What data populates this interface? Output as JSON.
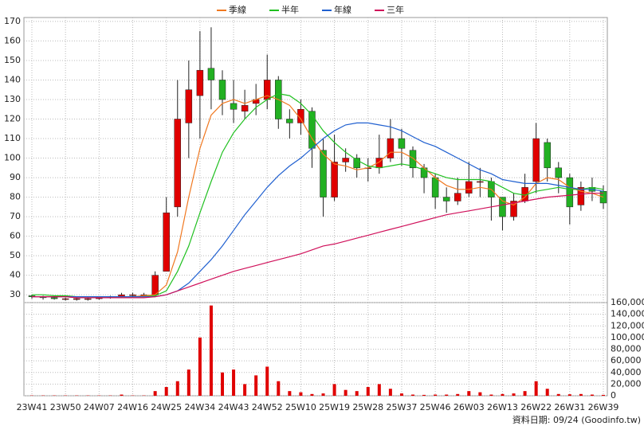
{
  "chart_data": {
    "type": "candlestick",
    "legend": "top",
    "grid": true,
    "up_color": "#e00000",
    "down_color": "#22b022",
    "categories": [
      "23W41",
      null,
      null,
      "23W50",
      null,
      null,
      "24W07",
      null,
      null,
      "24W16",
      null,
      null,
      "24W25",
      null,
      null,
      "24W34",
      null,
      null,
      "24W43",
      null,
      null,
      "24W52",
      null,
      null,
      "25W10",
      null,
      null,
      "25W19",
      null,
      null,
      "25W28",
      null,
      null,
      "25W37",
      null,
      null,
      "25W46",
      null,
      null,
      "26W03",
      null,
      null,
      "26W13",
      null,
      null,
      "26W22",
      null,
      null,
      "26W31",
      null,
      null,
      "26W39"
    ],
    "open": [
      29.5,
      29,
      28.5,
      28,
      28,
      28,
      28,
      28.5,
      29,
      30,
      30,
      30,
      42,
      75,
      118,
      132,
      146,
      140,
      128,
      124,
      128,
      130,
      140,
      120,
      118,
      124,
      104,
      80,
      98,
      100,
      95,
      95,
      100,
      110,
      104,
      95,
      90,
      80,
      78,
      82,
      88,
      88,
      80,
      70,
      78,
      88,
      108,
      95,
      90,
      76,
      85,
      83
    ],
    "high": [
      30,
      29.5,
      29,
      28.5,
      28.5,
      28.5,
      29,
      29.5,
      31,
      31,
      31,
      42,
      80,
      140,
      150,
      165,
      167,
      145,
      140,
      135,
      138,
      153,
      142,
      125,
      130,
      126,
      110,
      112,
      105,
      102,
      100,
      112,
      120,
      115,
      106,
      97,
      92,
      85,
      90,
      98,
      95,
      90,
      80,
      82,
      92,
      118,
      110,
      98,
      92,
      88,
      90,
      86
    ],
    "low": [
      28,
      27.5,
      27.5,
      27,
      27,
      27,
      27.5,
      28,
      28.5,
      29,
      29,
      29,
      42,
      70,
      100,
      110,
      125,
      122,
      118,
      120,
      122,
      125,
      115,
      110,
      112,
      95,
      70,
      78,
      93,
      90,
      88,
      92,
      98,
      96,
      90,
      82,
      74,
      72,
      76,
      80,
      80,
      68,
      63,
      68,
      77,
      82,
      88,
      82,
      66,
      73,
      78,
      74
    ],
    "close": [
      29,
      28.5,
      28,
      28,
      28,
      28,
      28.5,
      29,
      30,
      30,
      30,
      40,
      72,
      120,
      135,
      145,
      140,
      130,
      125,
      127,
      130,
      140,
      120,
      118,
      125,
      105,
      80,
      98,
      100,
      95,
      95,
      100,
      110,
      105,
      95,
      90,
      80,
      78,
      82,
      88,
      88,
      80,
      70,
      78,
      85,
      110,
      95,
      90,
      75,
      85,
      83,
      77
    ],
    "lines": [
      {
        "name": "季線",
        "color": "#f07820",
        "values": [
          29,
          29,
          29,
          29,
          28.5,
          28.5,
          28.5,
          28.5,
          29,
          29,
          29.5,
          30,
          35,
          52,
          80,
          105,
          122,
          128,
          130,
          128,
          130,
          132,
          130,
          127,
          120,
          110,
          102,
          97,
          96,
          94,
          95,
          98,
          103,
          103,
          100,
          95,
          90,
          86,
          84,
          84,
          85,
          84,
          78,
          76,
          80,
          87,
          90,
          89,
          85,
          83,
          82,
          80
        ]
      },
      {
        "name": "半年",
        "color": "#20c020",
        "values": [
          30,
          30,
          29.5,
          29.5,
          29,
          29,
          29,
          29,
          29,
          29,
          29,
          29.5,
          32,
          42,
          55,
          72,
          88,
          103,
          113,
          120,
          126,
          130,
          133,
          132,
          128,
          122,
          114,
          108,
          103,
          99,
          96,
          95,
          96,
          97,
          96,
          94,
          92,
          90,
          89,
          89,
          89,
          88,
          85,
          82,
          81,
          83,
          84,
          85,
          84,
          84,
          85,
          84
        ]
      },
      {
        "name": "年線",
        "color": "#2060d0",
        "values": [
          29,
          29,
          29,
          29,
          29,
          29,
          29,
          29,
          29,
          29,
          29,
          29,
          30,
          32,
          36,
          42,
          48,
          55,
          63,
          71,
          78,
          85,
          91,
          96,
          100,
          105,
          110,
          114,
          117,
          118,
          118,
          117,
          116,
          114,
          111,
          108,
          106,
          103,
          100,
          97,
          94,
          92,
          89,
          88,
          87,
          87,
          87,
          86,
          85,
          84,
          84,
          83
        ]
      },
      {
        "name": "三年",
        "color": "#d0105a",
        "values": [
          29,
          29,
          29,
          29,
          28.5,
          28.5,
          28.5,
          28.5,
          28.5,
          28.5,
          28.5,
          29,
          30,
          32,
          34,
          36,
          38,
          40,
          42,
          43.5,
          45,
          46.5,
          48,
          49.5,
          51,
          53,
          55,
          56,
          57.5,
          59,
          60.5,
          62,
          63.5,
          65,
          66.5,
          68,
          69.5,
          71,
          72,
          73,
          74,
          75,
          76,
          77,
          78,
          79,
          80,
          80.5,
          81,
          81.5,
          82,
          82
        ]
      }
    ],
    "ylim": [
      26,
      172
    ],
    "yticks": [
      30,
      40,
      50,
      60,
      70,
      80,
      90,
      100,
      110,
      120,
      130,
      140,
      150,
      160,
      170
    ],
    "volume": {
      "color": "#e00000",
      "values": [
        500,
        500,
        500,
        500,
        500,
        500,
        500,
        500,
        2000,
        500,
        500,
        8000,
        15000,
        25000,
        45000,
        100000,
        155000,
        40000,
        45000,
        20000,
        35000,
        50000,
        25000,
        8000,
        6000,
        3000,
        4000,
        20000,
        10000,
        8000,
        15000,
        20000,
        12000,
        4000,
        2000,
        1500,
        2000,
        2000,
        3000,
        8000,
        6000,
        2000,
        3000,
        4000,
        8000,
        25000,
        12000,
        3000,
        2500,
        3000,
        2000,
        1500
      ],
      "ylim": [
        0,
        160000
      ],
      "yticks": [
        0,
        {
          "value": 20000,
          "label": "20,000"
        },
        {
          "value": 40000,
          "label": "40,000"
        },
        {
          "value": 60000,
          "label": "60,000"
        },
        {
          "value": 80000,
          "label": "80,000"
        },
        {
          "value": 100000,
          "label": "100,000"
        },
        {
          "value": 120000,
          "label": "120,000"
        },
        {
          "value": 140000,
          "label": "140,000"
        },
        {
          "value": 160000,
          "label": "160,000"
        }
      ]
    }
  },
  "footer": "資料日期: 09/24 (Goodinfo.tw)"
}
